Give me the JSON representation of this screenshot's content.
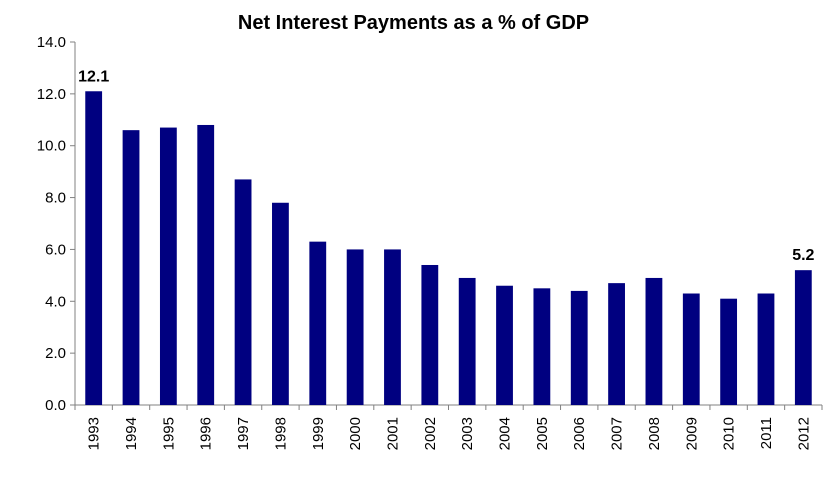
{
  "chart_data": {
    "type": "bar",
    "title": "Net Interest Payments as a % of GDP",
    "xlabel": "",
    "ylabel": "",
    "categories": [
      "1993",
      "1994",
      "1995",
      "1996",
      "1997",
      "1998",
      "1999",
      "2000",
      "2001",
      "2002",
      "2003",
      "2004",
      "2005",
      "2006",
      "2007",
      "2008",
      "2009",
      "2010",
      "2011",
      "2012"
    ],
    "values": [
      12.1,
      10.6,
      10.7,
      10.8,
      8.7,
      7.8,
      6.3,
      6.0,
      6.0,
      5.4,
      4.9,
      4.6,
      4.5,
      4.4,
      4.7,
      4.9,
      4.3,
      4.1,
      4.3,
      5.2
    ],
    "ylim": [
      0,
      14
    ],
    "yticks": [
      "0.0",
      "2.0",
      "4.0",
      "6.0",
      "8.0",
      "10.0",
      "12.0",
      "14.0"
    ],
    "data_labels": [
      {
        "index": 0,
        "text": "12.1"
      },
      {
        "index": 19,
        "text": "5.2"
      }
    ],
    "grid": false,
    "legend": "none",
    "bar_color": "#000080"
  }
}
